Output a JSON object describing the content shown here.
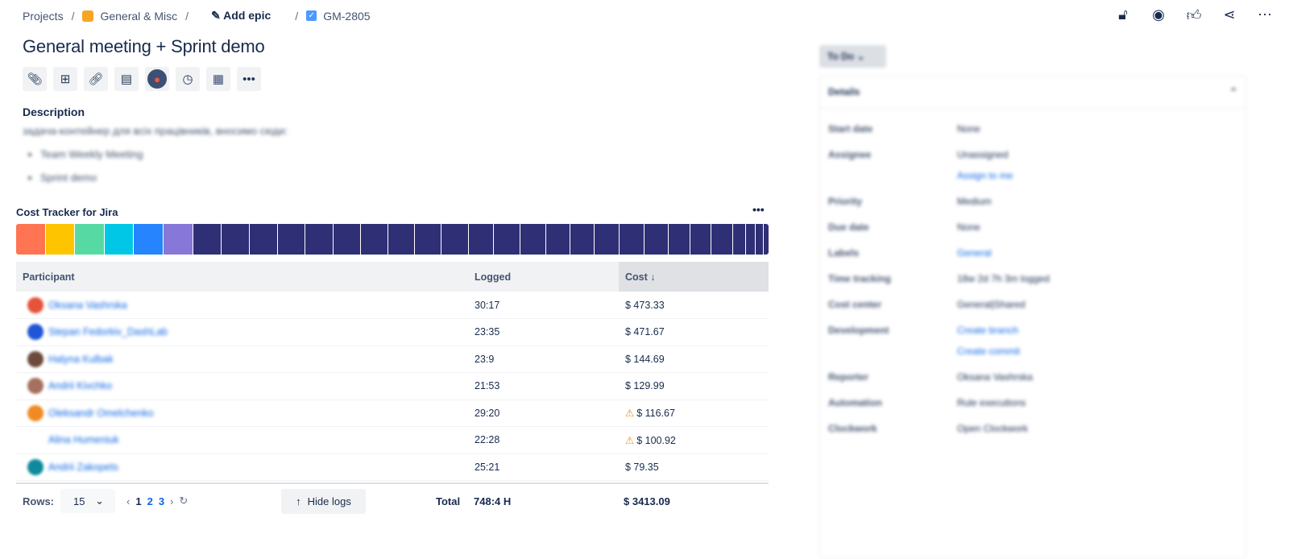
{
  "breadcrumbs": {
    "projects": "Projects",
    "project": "General & Misc",
    "add_epic": "Add epic",
    "issue_key": "GM-2805"
  },
  "top_actions": [
    "lock-icon",
    "eye-icon",
    "thumbs-up-icon",
    "share-icon",
    "more-icon"
  ],
  "issue": {
    "title": "General meeting + Sprint demo",
    "description_label": "Description",
    "description_text": "задача-контейнер для всіх працівників, вносимо сюди:",
    "description_items": [
      "Team Weekly Meeting",
      "Sprint demo"
    ]
  },
  "toolbar_icons": [
    "paperclip-icon",
    "hierarchy-icon",
    "link-icon",
    "document-icon",
    "microphone-icon",
    "clock-icon",
    "spreadsheet-icon",
    "more-icon"
  ],
  "cost_tracker": {
    "title": "Cost Tracker for Jira",
    "more": "•••",
    "segments": [
      {
        "color": "#ff7452",
        "share": 3.8
      },
      {
        "color": "#ffc400",
        "share": 3.8
      },
      {
        "color": "#57d9a3",
        "share": 3.8
      },
      {
        "color": "#00c7e6",
        "share": 3.8
      },
      {
        "color": "#2684ff",
        "share": 3.8
      },
      {
        "color": "#8777d9",
        "share": 3.8
      },
      {
        "color": "#2f2f75",
        "share": 3.7
      },
      {
        "color": "#2f2f75",
        "share": 3.6
      },
      {
        "color": "#2f2f75",
        "share": 3.6
      },
      {
        "color": "#2f2f75",
        "share": 3.6
      },
      {
        "color": "#2f2f75",
        "share": 3.6
      },
      {
        "color": "#2f2f75",
        "share": 3.5
      },
      {
        "color": "#2f2f75",
        "share": 3.5
      },
      {
        "color": "#2f2f75",
        "share": 3.4
      },
      {
        "color": "#2f2f75",
        "share": 3.5
      },
      {
        "color": "#2f2f75",
        "share": 3.5
      },
      {
        "color": "#2f2f75",
        "share": 3.2
      },
      {
        "color": "#2f2f75",
        "share": 3.4
      },
      {
        "color": "#2f2f75",
        "share": 3.3
      },
      {
        "color": "#2f2f75",
        "share": 3.1
      },
      {
        "color": "#2f2f75",
        "share": 3.1
      },
      {
        "color": "#2f2f75",
        "share": 3.2
      },
      {
        "color": "#2f2f75",
        "share": 3.2
      },
      {
        "color": "#2f2f75",
        "share": 3.1
      },
      {
        "color": "#2f2f75",
        "share": 2.8
      },
      {
        "color": "#2f2f75",
        "share": 2.7
      },
      {
        "color": "#2f2f75",
        "share": 2.7
      },
      {
        "color": "#2f2f75",
        "share": 1.6
      },
      {
        "color": "#2f2f75",
        "share": 1.2
      },
      {
        "color": "#2f2f75",
        "share": 1.0
      },
      {
        "color": "#2f2f75",
        "share": 0.6
      }
    ],
    "columns": {
      "participant": "Participant",
      "logged": "Logged",
      "cost": "Cost ↓"
    },
    "rows": [
      {
        "name": "Oksana Vashrska",
        "avatar": "#e5533a",
        "logged": "30:17",
        "cost": "$ 473.33",
        "warn": false
      },
      {
        "name": "Stepan Fedorkiv_DashLab",
        "avatar": "#1f55d6",
        "logged": "23:35",
        "cost": "$ 471.67",
        "warn": false
      },
      {
        "name": "Halyna Kulbak",
        "avatar": "#6b4a3a",
        "logged": "23:9",
        "cost": "$ 144.69",
        "warn": false
      },
      {
        "name": "Andrii Kivchko",
        "avatar": "#a57060",
        "logged": "21:53",
        "cost": "$ 129.99",
        "warn": false
      },
      {
        "name": "Oleksandr Omelchenko",
        "avatar": "#f08a24",
        "logged": "29:20",
        "cost": "$ 116.67",
        "warn": true
      },
      {
        "name": "Alina Humeniuk",
        "avatar": "",
        "logged": "22:28",
        "cost": "$ 100.92",
        "warn": true
      },
      {
        "name": "Andrii Zakopets",
        "avatar": "#0f8a9c",
        "logged": "25:21",
        "cost": "$ 79.35",
        "warn": false
      }
    ],
    "footer": {
      "rows_label": "Rows:",
      "rows_value": "15",
      "pages": [
        "1",
        "2",
        "3"
      ],
      "hide_logs": "Hide logs",
      "total_label": "Total",
      "total_hours": "748:4 H",
      "total_cost": "$ 3413.09"
    }
  },
  "sidebar": {
    "status": "To Do",
    "details_title": "Details",
    "fields": [
      {
        "label": "Start date",
        "value": "None"
      },
      {
        "label": "Assignee",
        "value": "Unassigned",
        "extra": "Assign to me"
      },
      {
        "label": "Priority",
        "value": "Medium"
      },
      {
        "label": "Due date",
        "value": "None"
      },
      {
        "label": "Labels",
        "value": "General"
      },
      {
        "label": "Time tracking",
        "value": "18w 2d 7h 3m logged"
      },
      {
        "label": "Cost center",
        "value": "General|Shared"
      },
      {
        "label": "Development",
        "value": "Create branch",
        "extra": "Create commit"
      },
      {
        "label": "Reporter",
        "value": "Oksana Vashrska"
      },
      {
        "label": "Automation",
        "value": "Rule executions"
      },
      {
        "label": "Clockwork",
        "value": "Open Clockwork"
      }
    ]
  }
}
